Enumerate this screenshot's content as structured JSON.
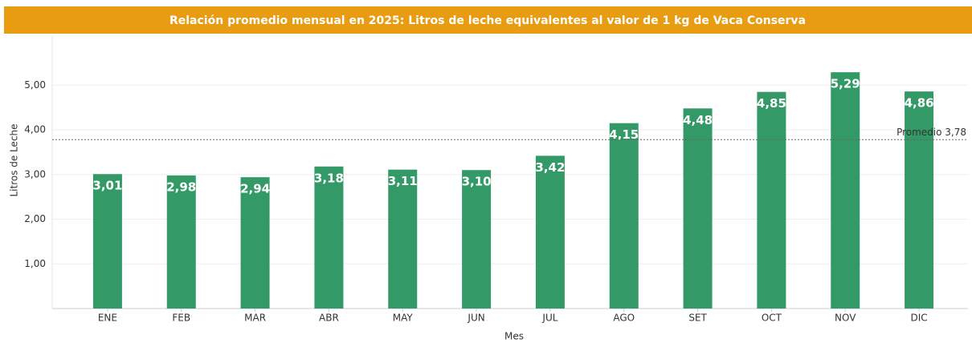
{
  "chart_data": {
    "type": "bar",
    "title": "Relación promedio mensual en 2025: Litros de leche equivalentes al valor de 1 kg de Vaca Conserva",
    "x_label": "Mes",
    "y_label": "Litros de Leche",
    "categories": [
      "ENE",
      "FEB",
      "MAR",
      "ABR",
      "MAY",
      "JUN",
      "JUL",
      "AGO",
      "SET",
      "OCT",
      "NOV",
      "DIC"
    ],
    "values": [
      3.01,
      2.98,
      2.94,
      3.18,
      3.11,
      3.1,
      3.42,
      4.15,
      4.48,
      4.85,
      5.29,
      4.86
    ],
    "value_labels": [
      "3,01",
      "2,98",
      "2,94",
      "3,18",
      "3,11",
      "3,10",
      "3,42",
      "4,15",
      "4,48",
      "4,85",
      "5,29",
      "4,86"
    ],
    "color": "#339966",
    "ylim": [
      0,
      6.1
    ],
    "yticks": [
      {
        "value": 1,
        "label": "1,00"
      },
      {
        "value": 2,
        "label": "2,00"
      },
      {
        "value": 3,
        "label": "3,00"
      },
      {
        "value": 4,
        "label": "4,00"
      },
      {
        "value": 5,
        "label": "5,00"
      }
    ],
    "grid": true,
    "reference_line": {
      "value": 3.78,
      "label": "Promedio 3,78"
    }
  }
}
